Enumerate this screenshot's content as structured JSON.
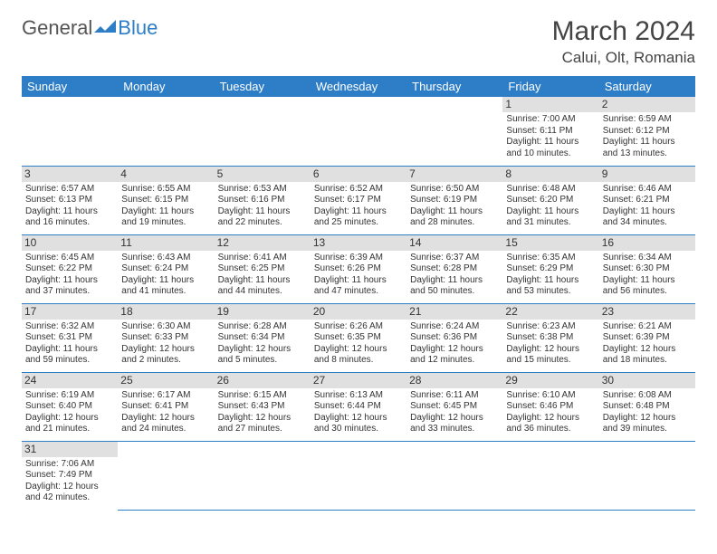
{
  "logo": {
    "general": "General",
    "blue": "Blue"
  },
  "title": {
    "month": "March 2024",
    "location": "Calui, Olt, Romania"
  },
  "weekdays": [
    "Sunday",
    "Monday",
    "Tuesday",
    "Wednesday",
    "Thursday",
    "Friday",
    "Saturday"
  ],
  "colors": {
    "header_bg": "#2d7dc7",
    "header_text": "#ffffff",
    "daynum_bg": "#e0e0e0",
    "border": "#2d7dc7",
    "text": "#333333",
    "logo_blue": "#2d7dc7"
  },
  "grid": [
    [
      null,
      null,
      null,
      null,
      null,
      {
        "n": "1",
        "sr": "Sunrise: 7:00 AM",
        "ss": "Sunset: 6:11 PM",
        "dl": "Daylight: 11 hours and 10 minutes."
      },
      {
        "n": "2",
        "sr": "Sunrise: 6:59 AM",
        "ss": "Sunset: 6:12 PM",
        "dl": "Daylight: 11 hours and 13 minutes."
      }
    ],
    [
      {
        "n": "3",
        "sr": "Sunrise: 6:57 AM",
        "ss": "Sunset: 6:13 PM",
        "dl": "Daylight: 11 hours and 16 minutes."
      },
      {
        "n": "4",
        "sr": "Sunrise: 6:55 AM",
        "ss": "Sunset: 6:15 PM",
        "dl": "Daylight: 11 hours and 19 minutes."
      },
      {
        "n": "5",
        "sr": "Sunrise: 6:53 AM",
        "ss": "Sunset: 6:16 PM",
        "dl": "Daylight: 11 hours and 22 minutes."
      },
      {
        "n": "6",
        "sr": "Sunrise: 6:52 AM",
        "ss": "Sunset: 6:17 PM",
        "dl": "Daylight: 11 hours and 25 minutes."
      },
      {
        "n": "7",
        "sr": "Sunrise: 6:50 AM",
        "ss": "Sunset: 6:19 PM",
        "dl": "Daylight: 11 hours and 28 minutes."
      },
      {
        "n": "8",
        "sr": "Sunrise: 6:48 AM",
        "ss": "Sunset: 6:20 PM",
        "dl": "Daylight: 11 hours and 31 minutes."
      },
      {
        "n": "9",
        "sr": "Sunrise: 6:46 AM",
        "ss": "Sunset: 6:21 PM",
        "dl": "Daylight: 11 hours and 34 minutes."
      }
    ],
    [
      {
        "n": "10",
        "sr": "Sunrise: 6:45 AM",
        "ss": "Sunset: 6:22 PM",
        "dl": "Daylight: 11 hours and 37 minutes."
      },
      {
        "n": "11",
        "sr": "Sunrise: 6:43 AM",
        "ss": "Sunset: 6:24 PM",
        "dl": "Daylight: 11 hours and 41 minutes."
      },
      {
        "n": "12",
        "sr": "Sunrise: 6:41 AM",
        "ss": "Sunset: 6:25 PM",
        "dl": "Daylight: 11 hours and 44 minutes."
      },
      {
        "n": "13",
        "sr": "Sunrise: 6:39 AM",
        "ss": "Sunset: 6:26 PM",
        "dl": "Daylight: 11 hours and 47 minutes."
      },
      {
        "n": "14",
        "sr": "Sunrise: 6:37 AM",
        "ss": "Sunset: 6:28 PM",
        "dl": "Daylight: 11 hours and 50 minutes."
      },
      {
        "n": "15",
        "sr": "Sunrise: 6:35 AM",
        "ss": "Sunset: 6:29 PM",
        "dl": "Daylight: 11 hours and 53 minutes."
      },
      {
        "n": "16",
        "sr": "Sunrise: 6:34 AM",
        "ss": "Sunset: 6:30 PM",
        "dl": "Daylight: 11 hours and 56 minutes."
      }
    ],
    [
      {
        "n": "17",
        "sr": "Sunrise: 6:32 AM",
        "ss": "Sunset: 6:31 PM",
        "dl": "Daylight: 11 hours and 59 minutes."
      },
      {
        "n": "18",
        "sr": "Sunrise: 6:30 AM",
        "ss": "Sunset: 6:33 PM",
        "dl": "Daylight: 12 hours and 2 minutes."
      },
      {
        "n": "19",
        "sr": "Sunrise: 6:28 AM",
        "ss": "Sunset: 6:34 PM",
        "dl": "Daylight: 12 hours and 5 minutes."
      },
      {
        "n": "20",
        "sr": "Sunrise: 6:26 AM",
        "ss": "Sunset: 6:35 PM",
        "dl": "Daylight: 12 hours and 8 minutes."
      },
      {
        "n": "21",
        "sr": "Sunrise: 6:24 AM",
        "ss": "Sunset: 6:36 PM",
        "dl": "Daylight: 12 hours and 12 minutes."
      },
      {
        "n": "22",
        "sr": "Sunrise: 6:23 AM",
        "ss": "Sunset: 6:38 PM",
        "dl": "Daylight: 12 hours and 15 minutes."
      },
      {
        "n": "23",
        "sr": "Sunrise: 6:21 AM",
        "ss": "Sunset: 6:39 PM",
        "dl": "Daylight: 12 hours and 18 minutes."
      }
    ],
    [
      {
        "n": "24",
        "sr": "Sunrise: 6:19 AM",
        "ss": "Sunset: 6:40 PM",
        "dl": "Daylight: 12 hours and 21 minutes."
      },
      {
        "n": "25",
        "sr": "Sunrise: 6:17 AM",
        "ss": "Sunset: 6:41 PM",
        "dl": "Daylight: 12 hours and 24 minutes."
      },
      {
        "n": "26",
        "sr": "Sunrise: 6:15 AM",
        "ss": "Sunset: 6:43 PM",
        "dl": "Daylight: 12 hours and 27 minutes."
      },
      {
        "n": "27",
        "sr": "Sunrise: 6:13 AM",
        "ss": "Sunset: 6:44 PM",
        "dl": "Daylight: 12 hours and 30 minutes."
      },
      {
        "n": "28",
        "sr": "Sunrise: 6:11 AM",
        "ss": "Sunset: 6:45 PM",
        "dl": "Daylight: 12 hours and 33 minutes."
      },
      {
        "n": "29",
        "sr": "Sunrise: 6:10 AM",
        "ss": "Sunset: 6:46 PM",
        "dl": "Daylight: 12 hours and 36 minutes."
      },
      {
        "n": "30",
        "sr": "Sunrise: 6:08 AM",
        "ss": "Sunset: 6:48 PM",
        "dl": "Daylight: 12 hours and 39 minutes."
      }
    ],
    [
      {
        "n": "31",
        "sr": "Sunrise: 7:06 AM",
        "ss": "Sunset: 7:49 PM",
        "dl": "Daylight: 12 hours and 42 minutes."
      },
      null,
      null,
      null,
      null,
      null,
      null
    ]
  ]
}
